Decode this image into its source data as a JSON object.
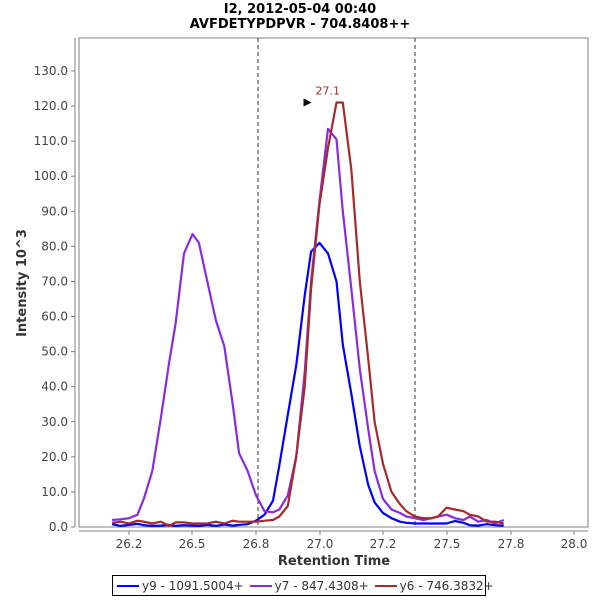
{
  "header": {
    "title_line1": "I2, 2012-05-04 00:40",
    "title_line2": "AVFDETYPDPVR - 704.8408++"
  },
  "axes": {
    "xlabel": "Retention Time",
    "ylabel": "Intensity 10^3",
    "xticks": [
      "26.2",
      "26.5",
      "26.8",
      "27.0",
      "27.2",
      "27.5",
      "27.8",
      "28.0"
    ],
    "yticks": [
      "0.0",
      "10.0",
      "20.0",
      "30.0",
      "40.0",
      "50.0",
      "60.0",
      "70.0",
      "80.0",
      "90.0",
      "100.0",
      "110.0",
      "120.0",
      "130.0"
    ]
  },
  "annotation": {
    "label": "27.1",
    "color": "#a52a2a"
  },
  "legend": {
    "items": [
      {
        "label": "y9 - 1091.5004+",
        "color": "#0000ff"
      },
      {
        "label": "y7 - 847.4308+",
        "color": "#8a2be2"
      },
      {
        "label": "y6 - 746.3832+",
        "color": "#a52a2a"
      }
    ]
  },
  "chart_data": {
    "type": "line",
    "title": "I2, 2012-05-04 00:40",
    "subtitle": "AVFDETYPDPVR - 704.8408++",
    "xlabel": "Retention Time",
    "ylabel": "Intensity 10^3",
    "xlim": [
      26.08,
      28.05
    ],
    "ylim": [
      0,
      136
    ],
    "grid": false,
    "legend_position": "bottom",
    "vertical_markers": [
      26.82,
      27.56
    ],
    "peak_annotation": {
      "x": 27.1,
      "y": 121.0,
      "label": "27.1"
    },
    "x": [
      26.12,
      26.16,
      26.2,
      26.24,
      26.27,
      26.31,
      26.35,
      26.39,
      26.42,
      26.46,
      26.5,
      26.53,
      26.57,
      26.61,
      26.65,
      26.69,
      26.72,
      26.76,
      26.8,
      26.84,
      26.88,
      26.91,
      26.95,
      26.99,
      27.03,
      27.06,
      27.1,
      27.14,
      27.18,
      27.21,
      27.25,
      27.29,
      27.33,
      27.36,
      27.4,
      27.44,
      27.48,
      27.51,
      27.55,
      27.59,
      27.63,
      27.66,
      27.7,
      27.74,
      27.78,
      27.81,
      27.85,
      27.89,
      27.93,
      27.97
    ],
    "series": [
      {
        "name": "y9 - 1091.5004+",
        "color": "#0000ff",
        "values": [
          0.8,
          0.3,
          0.6,
          0.9,
          0.5,
          0.3,
          0.4,
          0.6,
          0.3,
          0.5,
          0.4,
          0.3,
          0.6,
          0.3,
          0.7,
          0.4,
          0.6,
          0.8,
          1.8,
          3.5,
          7.5,
          17.5,
          32.0,
          46.0,
          66.0,
          78.5,
          81.0,
          78.0,
          70.0,
          52.0,
          38.0,
          23.0,
          12.0,
          7.0,
          4.0,
          2.5,
          1.5,
          1.2,
          1.0,
          1.0,
          1.0,
          1.0,
          1.0,
          1.7,
          1.2,
          0.5,
          0.4,
          0.8,
          0.5,
          0.4
        ]
      },
      {
        "name": "y7 - 847.4308+",
        "color": "#8a2be2",
        "values": [
          2.0,
          2.2,
          2.5,
          3.5,
          8.0,
          16.0,
          31.0,
          47.0,
          58.0,
          78.0,
          83.5,
          81.0,
          70.0,
          59.0,
          51.5,
          35.0,
          21.0,
          16.0,
          9.0,
          4.5,
          4.2,
          5.0,
          9.0,
          20.0,
          44.0,
          70.0,
          93.0,
          113.5,
          110.5,
          90.0,
          68.0,
          45.0,
          28.0,
          16.0,
          8.0,
          5.0,
          4.0,
          3.0,
          2.5,
          2.0,
          2.5,
          3.0,
          3.5,
          2.5,
          2.0,
          3.0,
          1.5,
          2.0,
          1.0,
          2.0
        ]
      },
      {
        "name": "y6 - 746.3832+",
        "color": "#a52a2a",
        "values": [
          1.2,
          1.5,
          1.0,
          1.8,
          1.5,
          1.0,
          1.5,
          0.3,
          1.3,
          1.3,
          1.0,
          1.0,
          1.0,
          1.5,
          1.0,
          1.8,
          1.5,
          1.5,
          1.5,
          1.8,
          2.0,
          3.0,
          6.0,
          20.0,
          40.0,
          68.0,
          92.0,
          108.0,
          121.0,
          121.0,
          102.0,
          70.0,
          48.0,
          30.0,
          18.0,
          10.0,
          6.5,
          4.5,
          3.0,
          2.5,
          2.5,
          3.0,
          5.5,
          5.0,
          4.5,
          3.5,
          3.0,
          1.5,
          1.5,
          1.0
        ]
      }
    ]
  }
}
